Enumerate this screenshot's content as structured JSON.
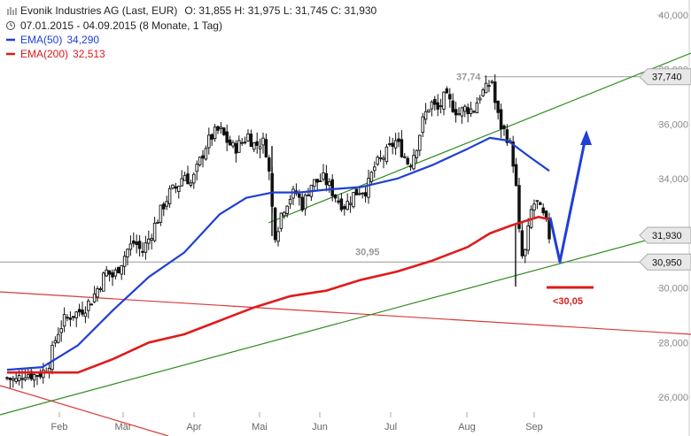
{
  "header": {
    "title": "Evonik Industries AG (Last, EUR)",
    "ohlc": "O: 31,855  H: 31,975  L: 31,745  C: 31,930",
    "range": "07.01.2015 - 04.09.2015 (8 Monate, 1 Tag)",
    "ema50_label": "EMA(50)",
    "ema50_value": "34,290",
    "ema200_label": "EMA(200)",
    "ema200_value": "32,513"
  },
  "chart_data": {
    "type": "candlestick",
    "title": "Evonik Industries AG (Last, EUR)",
    "x_months": [
      "Feb",
      "Mär",
      "Apr",
      "Mai",
      "Jun",
      "Jul",
      "Aug",
      "Sep"
    ],
    "y_ticks": [
      {
        "v": 26,
        "label": "26,000"
      },
      {
        "v": 28,
        "label": "28,000"
      },
      {
        "v": 30,
        "label": "30,000"
      },
      {
        "v": 32,
        "label": "32,000"
      },
      {
        "v": 34,
        "label": "34,000"
      },
      {
        "v": 36,
        "label": "36,000"
      },
      {
        "v": 38,
        "label": "38,000"
      },
      {
        "v": 40,
        "label": "40,000"
      }
    ],
    "ylim": [
      25.0,
      40.3
    ],
    "price_path": [
      [
        0,
        26.7
      ],
      [
        10,
        26.6
      ],
      [
        20,
        26.9
      ],
      [
        30,
        26.8
      ],
      [
        40,
        26.9
      ],
      [
        48,
        27.3
      ],
      [
        56,
        28.3
      ],
      [
        64,
        28.8
      ],
      [
        72,
        29.0
      ],
      [
        80,
        29.1
      ],
      [
        88,
        29.3
      ],
      [
        96,
        29.6
      ],
      [
        104,
        30.1
      ],
      [
        112,
        30.6
      ],
      [
        120,
        30.4
      ],
      [
        128,
        30.9
      ],
      [
        136,
        31.4
      ],
      [
        144,
        31.7
      ],
      [
        152,
        31.3
      ],
      [
        160,
        31.8
      ],
      [
        168,
        32.4
      ],
      [
        176,
        33.0
      ],
      [
        184,
        33.5
      ],
      [
        192,
        33.7
      ],
      [
        200,
        34.2
      ],
      [
        208,
        33.8
      ],
      [
        216,
        34.5
      ],
      [
        224,
        35.2
      ],
      [
        232,
        35.6
      ],
      [
        240,
        35.8
      ],
      [
        248,
        35.4
      ],
      [
        256,
        35.1
      ],
      [
        264,
        35.3
      ],
      [
        272,
        35.6
      ],
      [
        280,
        35.2
      ],
      [
        288,
        35.4
      ],
      [
        294,
        34.9
      ],
      [
        299,
        33.0
      ],
      [
        303,
        31.9
      ],
      [
        310,
        32.8
      ],
      [
        318,
        33.3
      ],
      [
        326,
        33.5
      ],
      [
        334,
        33.0
      ],
      [
        342,
        33.8
      ],
      [
        350,
        33.9
      ],
      [
        358,
        34.0
      ],
      [
        366,
        33.6
      ],
      [
        374,
        33.2
      ],
      [
        382,
        33.0
      ],
      [
        390,
        33.4
      ],
      [
        398,
        33.6
      ],
      [
        406,
        33.6
      ],
      [
        414,
        34.4
      ],
      [
        422,
        34.7
      ],
      [
        430,
        35.0
      ],
      [
        438,
        35.4
      ],
      [
        446,
        35.0
      ],
      [
        454,
        34.5
      ],
      [
        462,
        35.2
      ],
      [
        470,
        36.2
      ],
      [
        478,
        36.8
      ],
      [
        486,
        36.5
      ],
      [
        494,
        37.0
      ],
      [
        502,
        36.7
      ],
      [
        510,
        36.4
      ],
      [
        518,
        36.6
      ],
      [
        526,
        36.5
      ],
      [
        534,
        37.1
      ],
      [
        542,
        37.3
      ],
      [
        547,
        37.7
      ],
      [
        552,
        36.5
      ],
      [
        558,
        35.9
      ],
      [
        564,
        35.6
      ],
      [
        570,
        35.0
      ],
      [
        575,
        33.5
      ],
      [
        579,
        31.5
      ],
      [
        583,
        30.9
      ],
      [
        587,
        31.8
      ],
      [
        592,
        32.9
      ],
      [
        597,
        33.2
      ],
      [
        602,
        32.8
      ],
      [
        607,
        32.5
      ],
      [
        612,
        31.9
      ]
    ],
    "ema50": [
      [
        0,
        27.0
      ],
      [
        40,
        27.1
      ],
      [
        80,
        27.9
      ],
      [
        120,
        29.2
      ],
      [
        160,
        30.4
      ],
      [
        200,
        31.3
      ],
      [
        240,
        32.7
      ],
      [
        270,
        33.3
      ],
      [
        300,
        33.5
      ],
      [
        330,
        33.5
      ],
      [
        360,
        33.6
      ],
      [
        400,
        33.7
      ],
      [
        440,
        34.0
      ],
      [
        480,
        34.5
      ],
      [
        520,
        35.1
      ],
      [
        545,
        35.5
      ],
      [
        565,
        35.4
      ],
      [
        590,
        34.8
      ],
      [
        612,
        34.29
      ]
    ],
    "ema200": [
      [
        0,
        26.9
      ],
      [
        40,
        26.9
      ],
      [
        80,
        26.9
      ],
      [
        120,
        27.4
      ],
      [
        160,
        28.0
      ],
      [
        200,
        28.3
      ],
      [
        240,
        28.8
      ],
      [
        280,
        29.3
      ],
      [
        320,
        29.7
      ],
      [
        360,
        29.9
      ],
      [
        400,
        30.3
      ],
      [
        440,
        30.6
      ],
      [
        480,
        31.0
      ],
      [
        520,
        31.5
      ],
      [
        545,
        32.0
      ],
      [
        570,
        32.3
      ],
      [
        600,
        32.6
      ],
      [
        612,
        32.513
      ]
    ],
    "markers": [
      {
        "label": "37,740",
        "value": 37.74,
        "color": "#e8e8e8"
      },
      {
        "label": "31,930",
        "value": 31.93,
        "color": "#e8e8e8"
      },
      {
        "label": "30,950",
        "value": 30.95,
        "color": "#e8e8e8"
      }
    ],
    "annotations": [
      {
        "text": "37,74",
        "value": 37.74
      },
      {
        "text": "30,95",
        "value": 30.95
      },
      {
        "text": "<30,05",
        "value": 30.05
      }
    ],
    "colors": {
      "candles": "#111111",
      "ema50": "#1f3fd6",
      "ema200": "#e01b1b",
      "trend_green": "#2e8b1e",
      "trend_red": "#d83a3a",
      "forecast": "#1f3fd6",
      "target_line": "#e01b1b"
    }
  }
}
